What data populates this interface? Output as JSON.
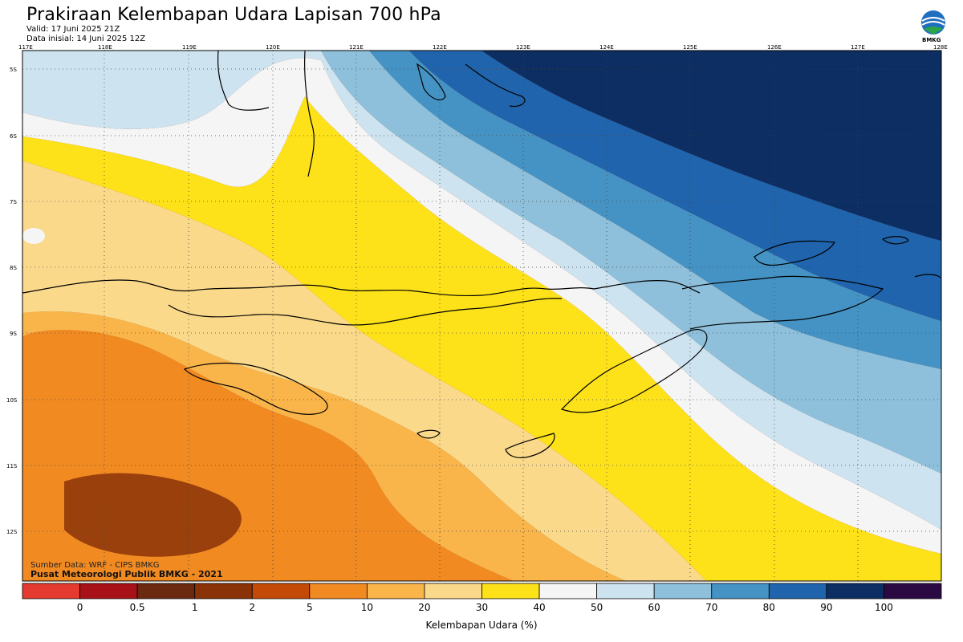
{
  "header": {
    "title": "Prakiraan Kelembapan Udara Lapisan 700 hPa",
    "valid": "Valid: 17 Juni 2025 21Z",
    "init": "Data inisial: 14 Juni 2025 12Z",
    "logo_text": "BMKG"
  },
  "map": {
    "lon_labels": [
      "117E",
      "118E",
      "119E",
      "120E",
      "121E",
      "122E",
      "123E",
      "124E",
      "125E",
      "126E",
      "127E",
      "128E"
    ],
    "lat_labels": [
      "5S",
      "6S",
      "7S",
      "8S",
      "9S",
      "10S",
      "11S",
      "12S"
    ],
    "credit_source": "Sumber Data: WRF - CIPS BMKG",
    "credit_org": "Pusat Meteorologi Publik BMKG - 2021"
  },
  "colorbar": {
    "ticks": [
      "0",
      "0.5",
      "1",
      "2",
      "5",
      "10",
      "20",
      "30",
      "40",
      "50",
      "60",
      "70",
      "80",
      "90",
      "100"
    ],
    "colors": [
      "#e53a2f",
      "#a81117",
      "#6b2a10",
      "#8b3308",
      "#c34b07",
      "#f28a22",
      "#f9b54a",
      "#fbd98a",
      "#fde21a",
      "#f5f5f5",
      "#cde3f0",
      "#8ec0dc",
      "#4593c4",
      "#2064ad",
      "#0c2e62",
      "#2b0a44"
    ],
    "title": "Kelembapan Udara (%)"
  }
}
